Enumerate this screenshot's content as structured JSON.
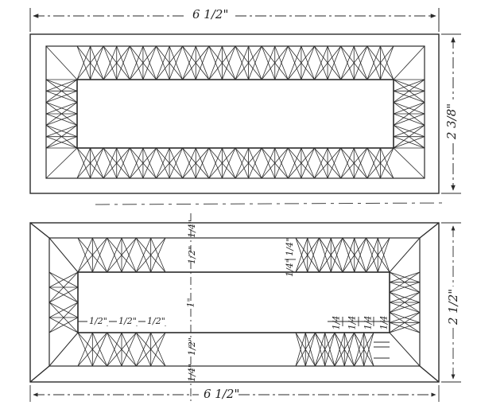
{
  "figure": {
    "top_panel": {
      "width_label": "6 1/2\"",
      "height_label": "2 3/8\""
    },
    "bottom_panel": {
      "width_label": "6 1/2\"",
      "height_label": "2 1/2\"",
      "top_margin_label": "1/4\"",
      "band_top_label": "1/2\"",
      "center_label": "1\"",
      "band_bottom_label": "1/2\"",
      "bottom_margin_label": "1/4\"",
      "inner_band_label": "1/4\"  1/4\"",
      "unit_labels_left": [
        "1/2\"",
        "1/2\"",
        "1/2\""
      ],
      "unit_labels_right": [
        "1/4",
        "1/4",
        "1/4",
        "1/4"
      ]
    }
  },
  "colors": {
    "ink": "#2a2a2a",
    "background": "#ffffff"
  }
}
